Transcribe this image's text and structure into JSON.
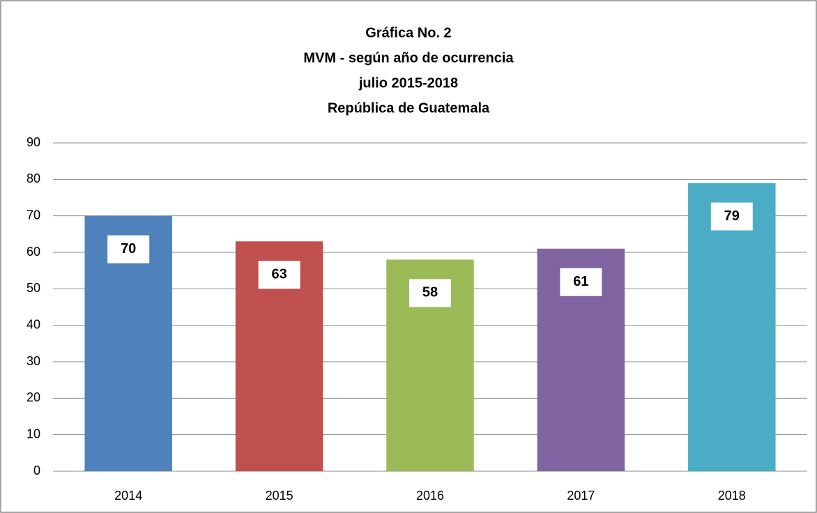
{
  "chart_data": {
    "type": "bar",
    "title": [
      "Gráfica No. 2",
      "MVM - según año de ocurrencia",
      "julio 2015-2018",
      "República de Guatemala"
    ],
    "categories": [
      "2014",
      "2015",
      "2016",
      "2017",
      "2018"
    ],
    "values": [
      70,
      63,
      58,
      61,
      79
    ],
    "colors": [
      "#4f81bd",
      "#c0504d",
      "#9bbb59",
      "#8064a2",
      "#4bacc6"
    ],
    "ylim": [
      0,
      90
    ],
    "yticks": [
      0,
      10,
      20,
      30,
      40,
      50,
      60,
      70,
      80,
      90
    ],
    "grid": true
  }
}
